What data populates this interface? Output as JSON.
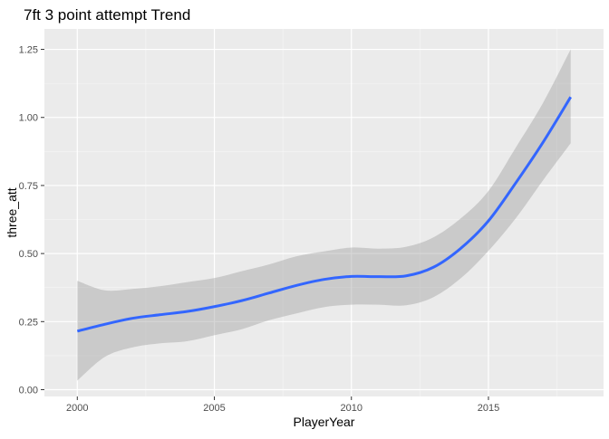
{
  "chart_data": {
    "type": "line",
    "title": "7ft 3 point attempt Trend",
    "xlabel": "PlayerYear",
    "ylabel": "three_att",
    "xlim": [
      1998.8,
      2019.2
    ],
    "ylim": [
      -0.025,
      1.325
    ],
    "x_ticks": [
      {
        "value": 2000,
        "label": "2000"
      },
      {
        "value": 2005,
        "label": "2005"
      },
      {
        "value": 2010,
        "label": "2010"
      },
      {
        "value": 2015,
        "label": "2015"
      }
    ],
    "y_ticks": [
      {
        "value": 0.0,
        "label": "0.00"
      },
      {
        "value": 0.25,
        "label": "0.25"
      },
      {
        "value": 0.5,
        "label": "0.50"
      },
      {
        "value": 0.75,
        "label": "0.75"
      },
      {
        "value": 1.0,
        "label": "1.00"
      },
      {
        "value": 1.25,
        "label": "1.25"
      }
    ],
    "grid": true,
    "series": [
      {
        "smooth": true,
        "confidence_band": true,
        "color": "#3366FF",
        "band_color": "#999999",
        "x": [
          2000,
          2001,
          2002,
          2003,
          2004,
          2005,
          2006,
          2007,
          2008,
          2009,
          2010,
          2011,
          2012,
          2013,
          2014,
          2015,
          2016,
          2017,
          2018
        ],
        "y": [
          0.215,
          0.24,
          0.262,
          0.275,
          0.287,
          0.305,
          0.327,
          0.355,
          0.383,
          0.405,
          0.416,
          0.415,
          0.418,
          0.45,
          0.52,
          0.62,
          0.76,
          0.91,
          1.075
        ],
        "lower": [
          0.033,
          0.12,
          0.155,
          0.17,
          0.178,
          0.2,
          0.222,
          0.255,
          0.28,
          0.303,
          0.312,
          0.312,
          0.31,
          0.34,
          0.41,
          0.51,
          0.63,
          0.77,
          0.905
        ],
        "upper": [
          0.4,
          0.365,
          0.37,
          0.38,
          0.395,
          0.41,
          0.435,
          0.46,
          0.49,
          0.508,
          0.522,
          0.518,
          0.525,
          0.56,
          0.63,
          0.73,
          0.89,
          1.055,
          1.25
        ]
      }
    ]
  }
}
